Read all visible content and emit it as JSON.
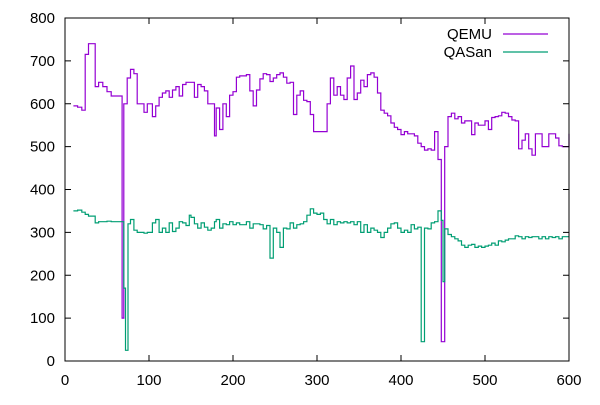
{
  "chart_data": {
    "type": "line",
    "style": "steps",
    "xlim": [
      0,
      600
    ],
    "ylim": [
      0,
      800
    ],
    "xticks": [
      0,
      100,
      200,
      300,
      400,
      500,
      600
    ],
    "yticks": [
      0,
      100,
      200,
      300,
      400,
      500,
      600,
      700,
      800
    ],
    "grid": false,
    "legend": "top-right",
    "series": [
      {
        "name": "QEMU",
        "color": "#9400d3",
        "points": [
          [
            10,
            595
          ],
          [
            15,
            592
          ],
          [
            20,
            585
          ],
          [
            24,
            715
          ],
          [
            28,
            740
          ],
          [
            33,
            740
          ],
          [
            36,
            640
          ],
          [
            40,
            650
          ],
          [
            45,
            640
          ],
          [
            50,
            628
          ],
          [
            55,
            618
          ],
          [
            60,
            618
          ],
          [
            66,
            618
          ],
          [
            68,
            100
          ],
          [
            70,
            600
          ],
          [
            72,
            600
          ],
          [
            74,
            660
          ],
          [
            78,
            680
          ],
          [
            82,
            670
          ],
          [
            86,
            600
          ],
          [
            90,
            600
          ],
          [
            94,
            580
          ],
          [
            98,
            600
          ],
          [
            100,
            600
          ],
          [
            104,
            570
          ],
          [
            108,
            595
          ],
          [
            112,
            615
          ],
          [
            116,
            625
          ],
          [
            120,
            630
          ],
          [
            124,
            615
          ],
          [
            128,
            632
          ],
          [
            132,
            640
          ],
          [
            136,
            618
          ],
          [
            140,
            645
          ],
          [
            144,
            650
          ],
          [
            148,
            650
          ],
          [
            150,
            650
          ],
          [
            154,
            615
          ],
          [
            158,
            645
          ],
          [
            162,
            640
          ],
          [
            166,
            630
          ],
          [
            170,
            600
          ],
          [
            174,
            600
          ],
          [
            178,
            525
          ],
          [
            180,
            590
          ],
          [
            184,
            540
          ],
          [
            188,
            600
          ],
          [
            192,
            570
          ],
          [
            196,
            620
          ],
          [
            200,
            628
          ],
          [
            204,
            662
          ],
          [
            208,
            665
          ],
          [
            212,
            665
          ],
          [
            216,
            668
          ],
          [
            220,
            630
          ],
          [
            224,
            595
          ],
          [
            228,
            632
          ],
          [
            232,
            658
          ],
          [
            236,
            670
          ],
          [
            240,
            668
          ],
          [
            244,
            652
          ],
          [
            248,
            660
          ],
          [
            252,
            668
          ],
          [
            256,
            672
          ],
          [
            260,
            662
          ],
          [
            264,
            648
          ],
          [
            268,
            650
          ],
          [
            272,
            575
          ],
          [
            276,
            620
          ],
          [
            280,
            630
          ],
          [
            284,
            608
          ],
          [
            288,
            605
          ],
          [
            292,
            575
          ],
          [
            296,
            535
          ],
          [
            300,
            535
          ],
          [
            304,
            535
          ],
          [
            308,
            535
          ],
          [
            312,
            600
          ],
          [
            316,
            660
          ],
          [
            320,
            620
          ],
          [
            324,
            640
          ],
          [
            328,
            620
          ],
          [
            332,
            610
          ],
          [
            336,
            660
          ],
          [
            340,
            688
          ],
          [
            344,
            610
          ],
          [
            348,
            625
          ],
          [
            352,
            655
          ],
          [
            356,
            640
          ],
          [
            360,
            668
          ],
          [
            364,
            672
          ],
          [
            368,
            662
          ],
          [
            372,
            625
          ],
          [
            376,
            585
          ],
          [
            380,
            578
          ],
          [
            384,
            572
          ],
          [
            388,
            555
          ],
          [
            392,
            545
          ],
          [
            396,
            540
          ],
          [
            400,
            528
          ],
          [
            404,
            535
          ],
          [
            408,
            530
          ],
          [
            412,
            530
          ],
          [
            416,
            525
          ],
          [
            420,
            508
          ],
          [
            424,
            500
          ],
          [
            428,
            492
          ],
          [
            432,
            495
          ],
          [
            436,
            492
          ],
          [
            440,
            535
          ],
          [
            444,
            470
          ],
          [
            448,
            45
          ],
          [
            452,
            500
          ],
          [
            456,
            570
          ],
          [
            460,
            578
          ],
          [
            464,
            565
          ],
          [
            468,
            570
          ],
          [
            472,
            555
          ],
          [
            476,
            560
          ],
          [
            480,
            560
          ],
          [
            484,
            528
          ],
          [
            488,
            555
          ],
          [
            492,
            550
          ],
          [
            496,
            550
          ],
          [
            500,
            560
          ],
          [
            504,
            540
          ],
          [
            508,
            568
          ],
          [
            512,
            570
          ],
          [
            516,
            572
          ],
          [
            520,
            580
          ],
          [
            524,
            578
          ],
          [
            528,
            570
          ],
          [
            532,
            562
          ],
          [
            536,
            560
          ],
          [
            540,
            495
          ],
          [
            544,
            515
          ],
          [
            548,
            530
          ],
          [
            552,
            495
          ],
          [
            556,
            480
          ],
          [
            560,
            530
          ],
          [
            564,
            530
          ],
          [
            568,
            500
          ],
          [
            572,
            500
          ],
          [
            576,
            530
          ],
          [
            580,
            530
          ],
          [
            584,
            520
          ],
          [
            588,
            502
          ],
          [
            592,
            500
          ],
          [
            596,
            500
          ],
          [
            600,
            530
          ]
        ]
      },
      {
        "name": "QASan",
        "color": "#009e73",
        "points": [
          [
            10,
            350
          ],
          [
            15,
            352
          ],
          [
            20,
            347
          ],
          [
            24,
            342
          ],
          [
            28,
            338
          ],
          [
            32,
            338
          ],
          [
            36,
            322
          ],
          [
            40,
            325
          ],
          [
            45,
            325
          ],
          [
            50,
            326
          ],
          [
            55,
            325
          ],
          [
            60,
            325
          ],
          [
            66,
            325
          ],
          [
            68,
            325
          ],
          [
            70,
            170
          ],
          [
            72,
            25
          ],
          [
            75,
            320
          ],
          [
            78,
            330
          ],
          [
            82,
            305
          ],
          [
            86,
            300
          ],
          [
            90,
            300
          ],
          [
            94,
            298
          ],
          [
            98,
            300
          ],
          [
            100,
            300
          ],
          [
            104,
            322
          ],
          [
            108,
            330
          ],
          [
            112,
            300
          ],
          [
            116,
            310
          ],
          [
            120,
            300
          ],
          [
            124,
            322
          ],
          [
            128,
            302
          ],
          [
            132,
            310
          ],
          [
            136,
            325
          ],
          [
            140,
            322
          ],
          [
            144,
            316
          ],
          [
            148,
            340
          ],
          [
            150,
            335
          ],
          [
            154,
            320
          ],
          [
            158,
            310
          ],
          [
            162,
            322
          ],
          [
            166,
            312
          ],
          [
            170,
            305
          ],
          [
            174,
            310
          ],
          [
            178,
            325
          ],
          [
            180,
            330
          ],
          [
            184,
            310
          ],
          [
            188,
            320
          ],
          [
            192,
            318
          ],
          [
            196,
            325
          ],
          [
            200,
            318
          ],
          [
            204,
            322
          ],
          [
            208,
            318
          ],
          [
            212,
            318
          ],
          [
            216,
            325
          ],
          [
            220,
            310
          ],
          [
            224,
            320
          ],
          [
            228,
            320
          ],
          [
            232,
            318
          ],
          [
            236,
            308
          ],
          [
            240,
            316
          ],
          [
            244,
            240
          ],
          [
            248,
            310
          ],
          [
            252,
            300
          ],
          [
            256,
            265
          ],
          [
            260,
            310
          ],
          [
            264,
            308
          ],
          [
            268,
            322
          ],
          [
            272,
            310
          ],
          [
            276,
            318
          ],
          [
            280,
            320
          ],
          [
            284,
            325
          ],
          [
            288,
            340
          ],
          [
            292,
            355
          ],
          [
            296,
            345
          ],
          [
            300,
            342
          ],
          [
            304,
            345
          ],
          [
            308,
            330
          ],
          [
            312,
            320
          ],
          [
            316,
            330
          ],
          [
            320,
            318
          ],
          [
            324,
            325
          ],
          [
            328,
            322
          ],
          [
            332,
            325
          ],
          [
            336,
            322
          ],
          [
            340,
            325
          ],
          [
            344,
            318
          ],
          [
            348,
            325
          ],
          [
            352,
            300
          ],
          [
            356,
            318
          ],
          [
            360,
            300
          ],
          [
            364,
            310
          ],
          [
            368,
            305
          ],
          [
            372,
            300
          ],
          [
            376,
            288
          ],
          [
            380,
            300
          ],
          [
            384,
            310
          ],
          [
            388,
            320
          ],
          [
            392,
            322
          ],
          [
            396,
            310
          ],
          [
            400,
            300
          ],
          [
            404,
            305
          ],
          [
            408,
            300
          ],
          [
            412,
            318
          ],
          [
            416,
            308
          ],
          [
            420,
            312
          ],
          [
            424,
            45
          ],
          [
            428,
            310
          ],
          [
            432,
            308
          ],
          [
            436,
            322
          ],
          [
            440,
            325
          ],
          [
            444,
            350
          ],
          [
            448,
            328
          ],
          [
            450,
            185
          ],
          [
            452,
            308
          ],
          [
            456,
            295
          ],
          [
            460,
            290
          ],
          [
            464,
            285
          ],
          [
            468,
            280
          ],
          [
            472,
            270
          ],
          [
            476,
            265
          ],
          [
            480,
            270
          ],
          [
            484,
            272
          ],
          [
            488,
            265
          ],
          [
            492,
            268
          ],
          [
            496,
            265
          ],
          [
            500,
            268
          ],
          [
            504,
            270
          ],
          [
            508,
            275
          ],
          [
            512,
            270
          ],
          [
            516,
            280
          ],
          [
            520,
            278
          ],
          [
            524,
            282
          ],
          [
            528,
            285
          ],
          [
            532,
            285
          ],
          [
            536,
            292
          ],
          [
            540,
            290
          ],
          [
            544,
            285
          ],
          [
            548,
            290
          ],
          [
            552,
            288
          ],
          [
            556,
            290
          ],
          [
            560,
            290
          ],
          [
            564,
            285
          ],
          [
            568,
            290
          ],
          [
            572,
            285
          ],
          [
            576,
            290
          ],
          [
            580,
            288
          ],
          [
            584,
            290
          ],
          [
            588,
            285
          ],
          [
            592,
            290
          ],
          [
            596,
            290
          ],
          [
            600,
            290
          ]
        ]
      }
    ]
  }
}
